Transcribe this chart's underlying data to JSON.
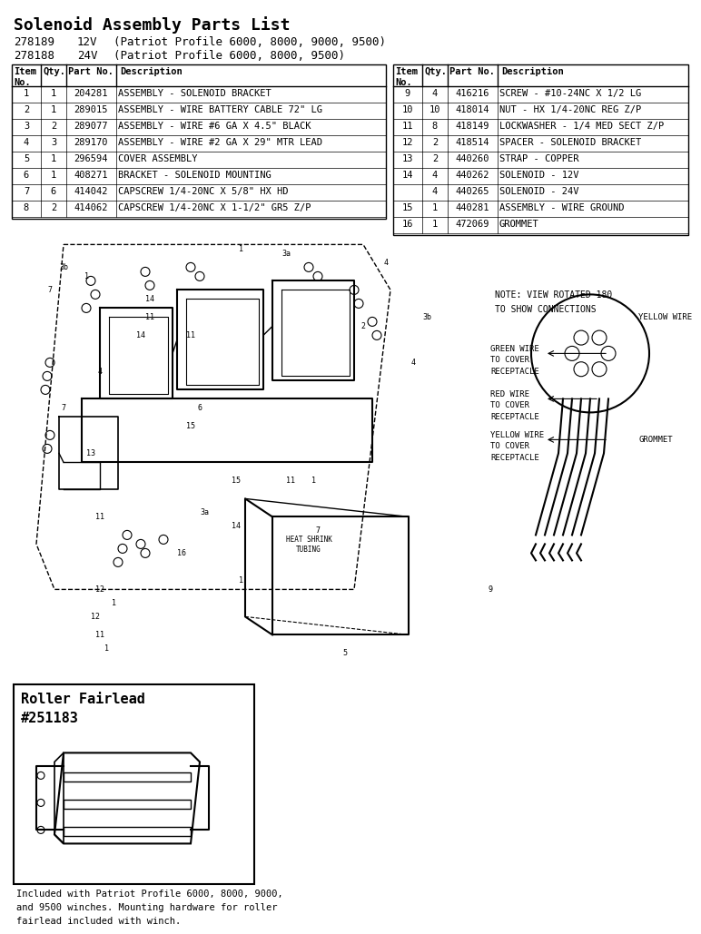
{
  "title": "Solenoid Assembly Parts List",
  "part_numbers": [
    {
      "pn": "278189",
      "volt": "12V",
      "desc": "(Patriot Profile 6000, 8000, 9000, 9500)"
    },
    {
      "pn": "278188",
      "volt": "24V",
      "desc": "(Patriot Profile 6000, 8000, 9500)"
    }
  ],
  "table_left": {
    "headers": [
      "Item\nNo.",
      "Qty.",
      "Part No.",
      "Description"
    ],
    "rows": [
      [
        "1",
        "1",
        "204281",
        "ASSEMBLY - SOLENOID BRACKET"
      ],
      [
        "2",
        "1",
        "289015",
        "ASSEMBLY - WIRE BATTERY CABLE 72\" LG"
      ],
      [
        "3",
        "2",
        "289077",
        "ASSEMBLY - WIRE #6 GA X 4.5\" BLACK"
      ],
      [
        "4",
        "3",
        "289170",
        "ASSEMBLY - WIRE #2 GA X 29\" MTR LEAD"
      ],
      [
        "5",
        "1",
        "296594",
        "COVER ASSEMBLY"
      ],
      [
        "6",
        "1",
        "408271",
        "BRACKET - SOLENOID MOUNTING"
      ],
      [
        "7",
        "6",
        "414042",
        "CAPSCREW 1/4-20NC X 5/8\" HX HD"
      ],
      [
        "8",
        "2",
        "414062",
        "CAPSCREW 1/4-20NC X 1-1/2\" GR5 Z/P"
      ]
    ]
  },
  "table_right": {
    "headers": [
      "Item\nNo.",
      "Qty.",
      "Part No.",
      "Description"
    ],
    "rows": [
      [
        "9",
        "4",
        "416216",
        "SCREW - #10-24NC X 1/2 LG"
      ],
      [
        "10",
        "10",
        "418014",
        "NUT - HX 1/4-20NC REG Z/P"
      ],
      [
        "11",
        "8",
        "418149",
        "LOCKWASHER - 1/4 MED SECT Z/P"
      ],
      [
        "12",
        "2",
        "418514",
        "SPACER - SOLENOID BRACKET"
      ],
      [
        "13",
        "2",
        "440260",
        "STRAP - COPPER"
      ],
      [
        "14",
        "4",
        "440262",
        "SOLENOID - 12V"
      ],
      [
        "",
        "4",
        "440265",
        "SOLENOID - 24V"
      ],
      [
        "15",
        "1",
        "440281",
        "ASSEMBLY - WIRE GROUND"
      ],
      [
        "16",
        "1",
        "472069",
        "GROMMET"
      ]
    ]
  },
  "roller_fairlead": {
    "title": "Roller Fairlead\n#251183",
    "caption": "Included with Patriot Profile 6000, 8000, 9000,\nand 9500 winches. Mounting hardware for roller\nfairlead included with winch."
  },
  "diagram_note": "NOTE: VIEW ROTATED 180\nTO SHOW CONNECTIONS",
  "wire_labels": [
    "GREEN WIRE\nTO COVER\nRECEPTACLE",
    "RED WIRE\nTO COVER\nRECEPTACLE",
    "YELLOW WIRE\nTO COVER\nRECEPTACLE"
  ],
  "wire_labels_right": [
    "YELLOW WIRE",
    "GROMMET"
  ],
  "heat_shrink_label": "HEAT SHRINK\nTUBING",
  "bg_color": "#ffffff",
  "line_color": "#000000",
  "table_border_color": "#000000"
}
